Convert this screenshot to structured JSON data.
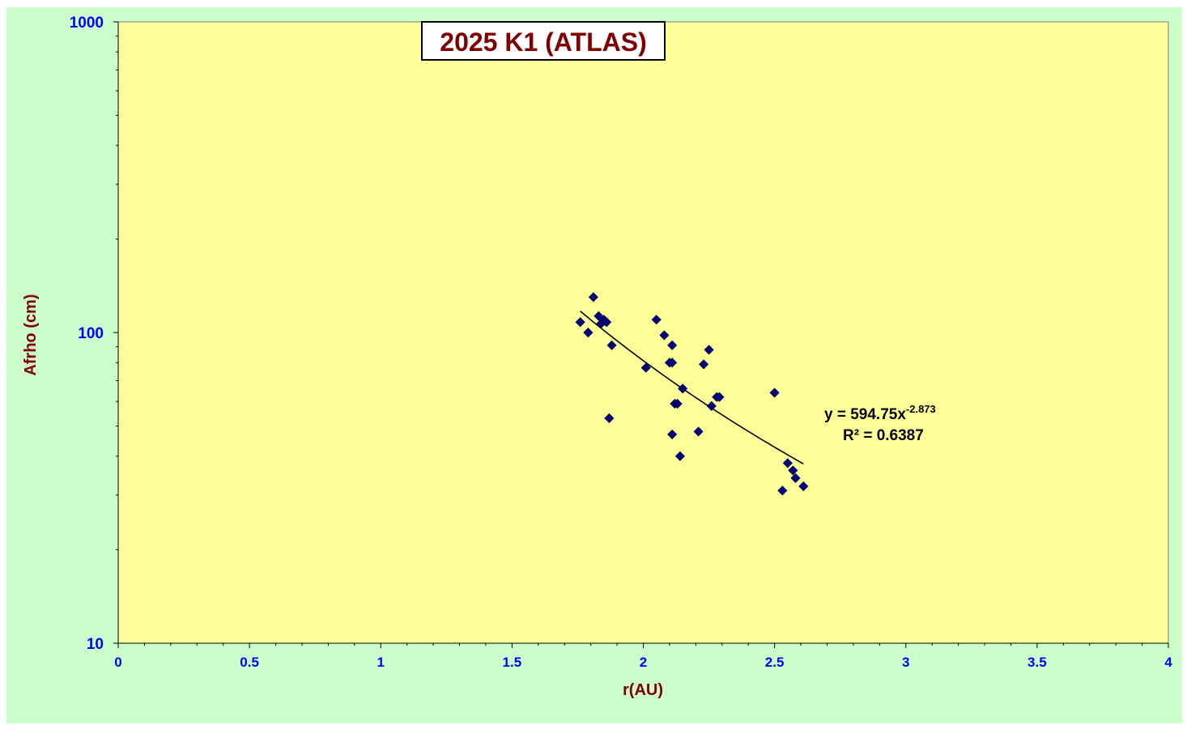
{
  "chart_data": {
    "type": "scatter",
    "title": "2025 K1 (ATLAS)",
    "xlabel": "r(AU)",
    "ylabel": "Afrho (cm)",
    "xlim": [
      0,
      4
    ],
    "ylim": [
      10,
      1000
    ],
    "yscale": "log",
    "x_ticks": [
      "0",
      "0.5",
      "1",
      "1.5",
      "2",
      "2.5",
      "3",
      "3.5",
      "4"
    ],
    "y_ticks": [
      "10",
      "100",
      "1000"
    ],
    "grid": false,
    "legend": "none",
    "colors": {
      "outer_background": "#ccffcc",
      "plot_background": "#ffff99",
      "title_text": "#800000",
      "axis_label": "#800000",
      "tick_label": "#0000ff",
      "marker": "#000080",
      "trendline": "#000000"
    },
    "series": [
      {
        "x": [
          1.76,
          1.79,
          1.81,
          1.83,
          1.84,
          1.85,
          1.86,
          1.87,
          1.88,
          2.01,
          2.05,
          2.08,
          2.1,
          2.11,
          2.11,
          2.11,
          2.12,
          2.13,
          2.14,
          2.15,
          2.21,
          2.23,
          2.25,
          2.26,
          2.28,
          2.29,
          2.5,
          2.53,
          2.55,
          2.57,
          2.58,
          2.61
        ],
        "y": [
          108,
          100,
          130,
          113,
          107,
          110,
          108,
          53,
          91,
          77,
          110,
          98,
          80,
          91,
          80,
          47,
          59,
          59,
          40,
          66,
          48,
          79,
          88,
          58,
          62,
          62,
          64,
          31,
          38,
          36,
          34,
          32
        ]
      }
    ],
    "trendline": {
      "type": "power",
      "a": 594.75,
      "b": -2.873,
      "x_range": [
        1.76,
        2.61
      ],
      "equation_prefix": "y = 594.75x",
      "equation_exponent": "-2.873",
      "r2_label": "R² = 0.6387"
    }
  }
}
